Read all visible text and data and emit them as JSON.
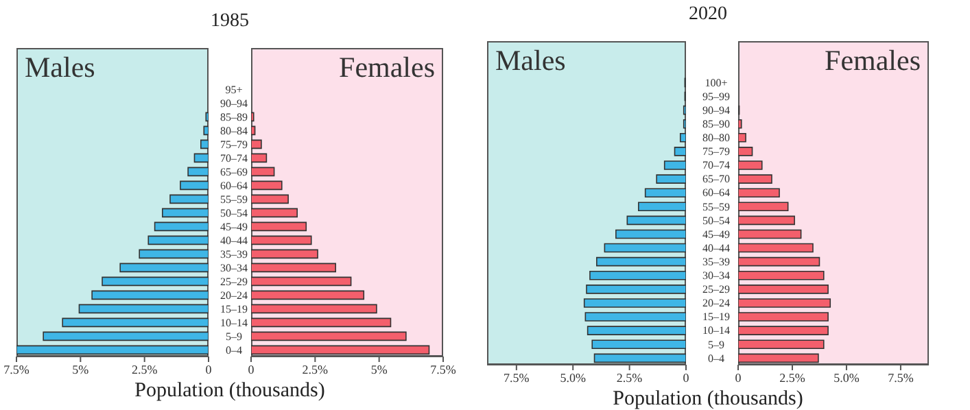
{
  "chart_data": [
    {
      "type": "bar",
      "orientation": "horizontal",
      "title": "1985",
      "xlabel": "Population (thousands)",
      "legend": "top left",
      "categories": [
        "95+",
        "90–94",
        "85–89",
        "80–84",
        "75–79",
        "70–74",
        "65–69",
        "60–64",
        "55–59",
        "50–54",
        "45–49",
        "40–44",
        "35–39",
        "30–34",
        "25–29",
        "20–24",
        "15–19",
        "10–14",
        "5–9",
        "0–4"
      ],
      "series": [
        {
          "name": "Males",
          "color": "#3fb6e6",
          "values": [
            0,
            0,
            0.1,
            0.18,
            0.3,
            0.55,
            0.8,
            1.1,
            1.5,
            1.8,
            2.1,
            2.35,
            2.7,
            3.45,
            4.15,
            4.55,
            5.05,
            5.7,
            6.45,
            7.5
          ]
        }
      ],
      "xlim": [
        7.5,
        0
      ],
      "xticks": [
        {
          "value": 7.5,
          "label": "7.5%"
        },
        {
          "value": 5,
          "label": "5%"
        },
        {
          "value": 2.5,
          "label": "2.5%"
        },
        {
          "value": 0,
          "label": "0"
        }
      ]
    },
    {
      "type": "bar",
      "orientation": "horizontal",
      "legend": "top right",
      "tick_labels": "x",
      "categories": [
        null,
        null,
        null,
        null,
        null,
        null,
        null,
        null,
        null,
        null,
        null,
        null,
        null,
        null,
        null,
        null,
        null,
        null,
        null,
        null
      ],
      "series": [
        {
          "name": "Females",
          "color": "#f45f6c",
          "values": [
            0,
            0,
            0.1,
            0.15,
            0.4,
            0.6,
            0.9,
            1.2,
            1.45,
            1.8,
            2.15,
            2.35,
            2.6,
            3.3,
            3.9,
            4.4,
            4.9,
            5.45,
            6.05,
            6.95
          ]
        }
      ],
      "xlim": [
        0,
        7.5
      ],
      "xticks": [
        {
          "value": 0,
          "label": "0"
        },
        {
          "value": 2.5,
          "label": "2.5%"
        },
        {
          "value": 5,
          "label": "5%"
        },
        {
          "value": 7.5,
          "label": "7.5%"
        }
      ]
    },
    {
      "type": "bar",
      "orientation": "horizontal",
      "title": "2020",
      "xlabel": "Population (thousands)",
      "legend": "top left",
      "categories": [
        "100+",
        "95–99",
        "90–94",
        "85–90",
        "80–80",
        "75–79",
        "70–74",
        "65–70",
        "60–64",
        "55–59",
        "50–54",
        "45–49",
        "40–44",
        "35–39",
        "30–34",
        "25–29",
        "20–24",
        "15–19",
        "10–14",
        "5–9",
        "0–4"
      ],
      "series": [
        {
          "name": "Males",
          "color": "#3fb6e6",
          "values": [
            0.05,
            0.05,
            0.1,
            0.1,
            0.25,
            0.5,
            0.95,
            1.3,
            1.8,
            2.1,
            2.6,
            3.1,
            3.6,
            3.95,
            4.25,
            4.4,
            4.5,
            4.45,
            4.35,
            4.15,
            4.05
          ]
        }
      ],
      "xlim": [
        8.8,
        0
      ],
      "xticks": [
        {
          "value": 7.5,
          "label": "7.5%"
        },
        {
          "value": 5,
          "label": "5.0%"
        },
        {
          "value": 2.5,
          "label": "2.5%"
        },
        {
          "value": 0,
          "label": "0"
        }
      ]
    },
    {
      "type": "bar",
      "orientation": "horizontal",
      "legend": "top right",
      "tick_labels": "x",
      "categories": [
        null,
        null,
        null,
        null,
        null,
        null,
        null,
        null,
        null,
        null,
        null,
        null,
        null,
        null,
        null,
        null,
        null,
        null,
        null,
        null,
        null
      ],
      "series": [
        {
          "name": "Females",
          "color": "#f45f6c",
          "values": [
            0,
            0,
            0.05,
            0.15,
            0.35,
            0.65,
            1.1,
            1.55,
            1.9,
            2.3,
            2.6,
            2.9,
            3.45,
            3.75,
            3.95,
            4.15,
            4.25,
            4.15,
            4.15,
            3.95,
            3.7
          ]
        }
      ],
      "xlim": [
        0,
        8.8
      ],
      "xticks": [
        {
          "value": 0,
          "label": "0"
        },
        {
          "value": 2.5,
          "label": "2.5%"
        },
        {
          "value": 5,
          "label": "5.0%"
        },
        {
          "value": 7.5,
          "label": "7.5%"
        }
      ]
    }
  ]
}
